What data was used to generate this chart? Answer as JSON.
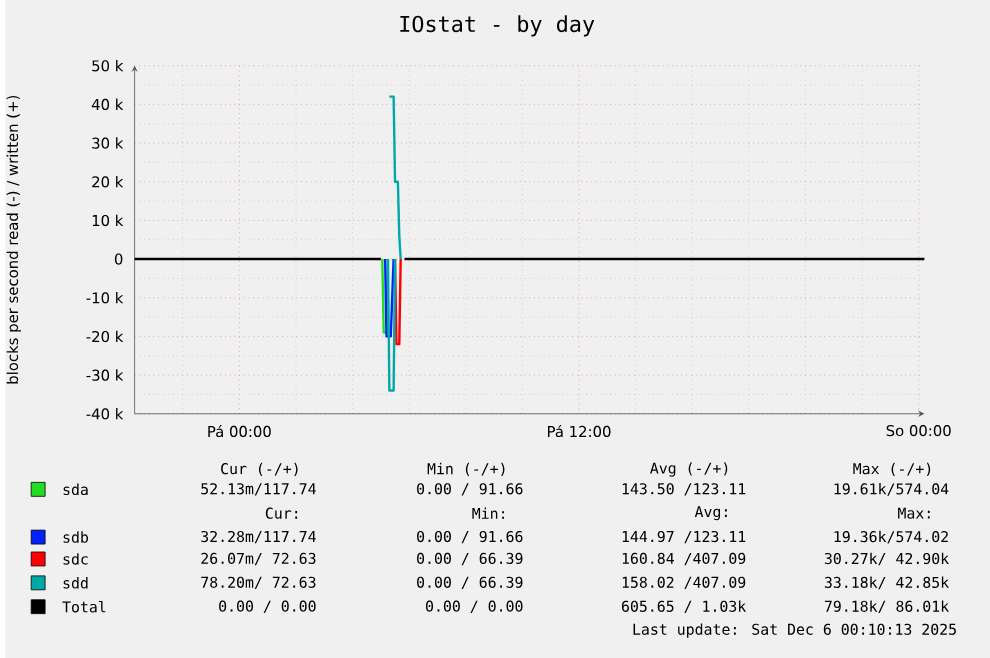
{
  "chart_data": {
    "type": "line",
    "title": "IOstat - by day",
    "ylabel": "blocks per second read (-) / written (+)",
    "xlim": [
      "2025-12-04T20:18",
      "2025-12-06T00:12"
    ],
    "xticks": [
      {
        "value": "2025-12-04T22:00",
        "label": null
      },
      {
        "value": "2025-12-05T00:00",
        "label": "Pá 00:00"
      },
      {
        "value": "2025-12-05T02:00",
        "label": null
      },
      {
        "value": "2025-12-05T04:00",
        "label": null
      },
      {
        "value": "2025-12-05T06:00",
        "label": null
      },
      {
        "value": "2025-12-05T08:00",
        "label": null
      },
      {
        "value": "2025-12-05T10:00",
        "label": null
      },
      {
        "value": "2025-12-05T12:00",
        "label": "Pá 12:00"
      },
      {
        "value": "2025-12-05T14:00",
        "label": null
      },
      {
        "value": "2025-12-05T16:00",
        "label": null
      },
      {
        "value": "2025-12-05T18:00",
        "label": null
      },
      {
        "value": "2025-12-05T20:00",
        "label": null
      },
      {
        "value": "2025-12-05T22:00",
        "label": null
      },
      {
        "value": "2025-12-06T00:00",
        "label": "So 00:00"
      }
    ],
    "ylim": [
      -40000,
      50000
    ],
    "yticks": [
      {
        "value": -40000,
        "label": "-40 k"
      },
      {
        "value": -35000,
        "label": null
      },
      {
        "value": -30000,
        "label": "-30 k"
      },
      {
        "value": -25000,
        "label": null
      },
      {
        "value": -20000,
        "label": "-20 k"
      },
      {
        "value": -15000,
        "label": null
      },
      {
        "value": -10000,
        "label": "-10 k"
      },
      {
        "value": -5000,
        "label": null
      },
      {
        "value": 0,
        "label": "0"
      },
      {
        "value": 5000,
        "label": null
      },
      {
        "value": 10000,
        "label": "10 k"
      },
      {
        "value": 15000,
        "label": null
      },
      {
        "value": 20000,
        "label": "20 k"
      },
      {
        "value": 25000,
        "label": null
      },
      {
        "value": 30000,
        "label": "30 k"
      },
      {
        "value": 35000,
        "label": null
      },
      {
        "value": 40000,
        "label": "40 k"
      },
      {
        "value": 45000,
        "label": null
      },
      {
        "value": 50000,
        "label": "50 k"
      }
    ],
    "grid": true,
    "legend": "bottom",
    "series": [
      {
        "name": "sda",
        "color": "#22dd22",
        "x": [
          "2025-12-05T05:03",
          "2025-12-05T05:06",
          "2025-12-05T05:12",
          "2025-12-05T05:15"
        ],
        "values": [
          0,
          -19000,
          -19000,
          0
        ]
      },
      {
        "name": "sdb",
        "color": "#0022ff",
        "x": [
          "2025-12-05T05:09",
          "2025-12-05T05:12",
          "2025-12-05T05:21",
          "2025-12-05T05:27"
        ],
        "values": [
          0,
          -20000,
          -20000,
          0
        ]
      },
      {
        "name": "sdc",
        "color": "#ff0000",
        "x": [
          "2025-12-05T05:30",
          "2025-12-05T05:33",
          "2025-12-05T05:39",
          "2025-12-05T05:42"
        ],
        "values": [
          0,
          -22000,
          -22000,
          0
        ]
      },
      {
        "name": "sdd",
        "color": "#00a8a8",
        "x": [
          "2025-12-05T05:15",
          "2025-12-05T05:18",
          "2025-12-05T05:27",
          "2025-12-05T05:30"
        ],
        "values": [
          0,
          -34000,
          -34000,
          0
        ]
      },
      {
        "color": "#00a8a8",
        "x": [
          "2025-12-05T05:18",
          "2025-12-05T05:27",
          "2025-12-05T05:30",
          "2025-12-05T05:36",
          "2025-12-05T05:39",
          "2025-12-05T05:42"
        ],
        "values": [
          42000,
          42000,
          20000,
          20000,
          6000,
          0
        ]
      },
      {
        "name": "Total",
        "color": "#000000",
        "x": [
          "2025-12-04T20:18",
          "2025-12-05T05:00",
          "2025-12-05T05:20",
          "2025-12-05T05:50",
          "2025-12-06T00:12"
        ],
        "values": [
          0,
          0,
          null,
          0,
          0
        ]
      }
    ],
    "annotations": [
      "Cur (-/+)",
      "Min (-/+)",
      "Avg (-/+)",
      "Max (-/+)",
      "52.13m/117.74",
      "0.00 / 91.66",
      "143.50 /123.11",
      "19.61k/574.04",
      "Cur:",
      "Min:",
      "Avg:",
      "Max:",
      "32.28m/117.74",
      "0.00 / 91.66",
      "144.97 /123.11",
      "19.36k/574.02",
      "26.07m/ 72.63",
      "0.00 / 66.39",
      "160.84 /407.09",
      "30.27k/ 42.90k",
      "78.20m/ 72.63",
      "0.00 / 66.39",
      "158.02 /407.09",
      "33.18k/ 42.85k",
      "0.00 /  0.00",
      "0.00 /  0.00",
      "605.65 /  1.03k",
      "79.18k/ 86.01k",
      "Last update: Sat Dec  6 00:10:13 2025"
    ]
  }
}
